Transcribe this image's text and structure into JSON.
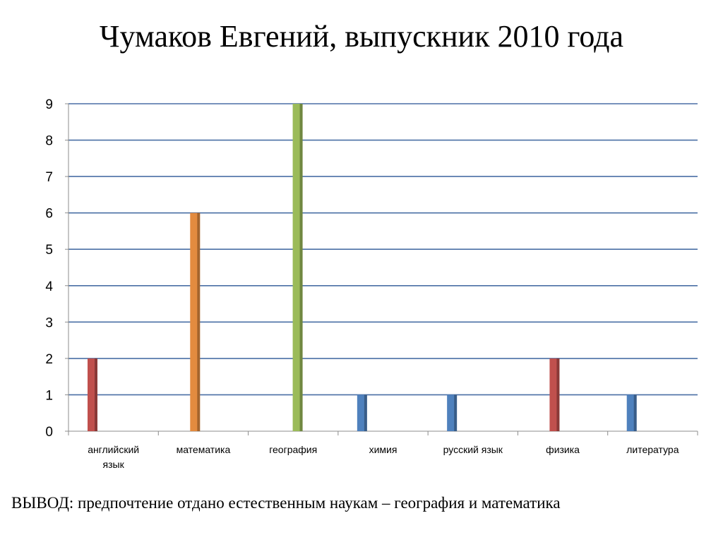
{
  "title": "Чумаков Евгений, выпускник 2010 года",
  "conclusion": "ВЫВОД: предпочтение отдано естественным наукам – география и математика",
  "chart_data": {
    "type": "bar",
    "categories": [
      {
        "lines": [
          "английский",
          "язык"
        ]
      },
      {
        "lines": [
          "математика"
        ]
      },
      {
        "lines": [
          "география"
        ]
      },
      {
        "lines": [
          "химия"
        ]
      },
      {
        "lines": [
          "русский язык"
        ]
      },
      {
        "lines": [
          "физика"
        ]
      },
      {
        "lines": [
          "литература"
        ]
      }
    ],
    "bars": [
      {
        "category": 0,
        "value": 2,
        "slot": 0,
        "color": "#c0504d"
      },
      {
        "category": 1,
        "value": 6,
        "slot": 1,
        "color": "#e38b3f"
      },
      {
        "category": 2,
        "value": 9,
        "slot": 2,
        "color": "#9bbb59"
      },
      {
        "category": 3,
        "value": 1,
        "slot": 0,
        "color": "#4f81bd"
      },
      {
        "category": 4,
        "value": 1,
        "slot": 0,
        "color": "#4f81bd"
      },
      {
        "category": 5,
        "value": 2,
        "slot": 1,
        "color": "#c0504d"
      },
      {
        "category": 6,
        "value": 1,
        "slot": 0,
        "color": "#4f81bd"
      }
    ],
    "ylim": [
      0,
      9
    ],
    "yticks": [
      0,
      1,
      2,
      3,
      4,
      5,
      6,
      7,
      8,
      9
    ],
    "grid": true,
    "gridline_color": "#4a6fa5"
  }
}
